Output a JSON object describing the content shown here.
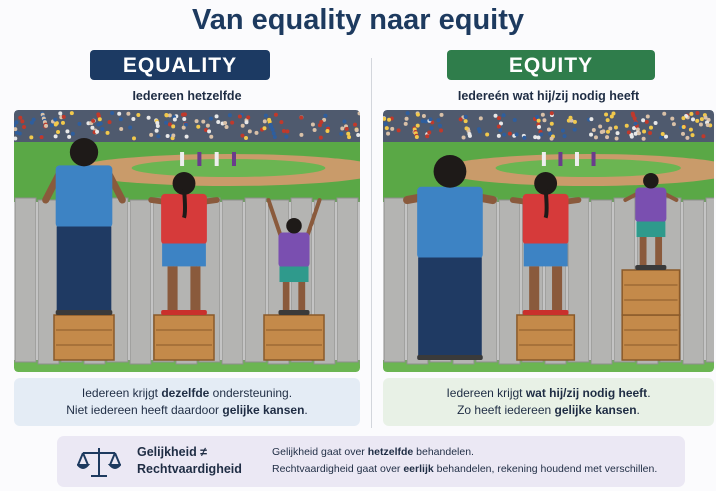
{
  "title": "Van equality naar equity",
  "panels": [
    {
      "badge": "EQUALITY",
      "badge_color": "#1c3a63",
      "subtitle": "Iedereen hetzelfde",
      "caption_color": "#e4ecf5",
      "caption": [
        [
          {
            "text": "Iedereen krijgt "
          },
          {
            "text": "dezelfde",
            "bold": true
          },
          {
            "text": " ondersteuning."
          }
        ],
        [
          {
            "text": "Niet iedereen heeft daardoor "
          },
          {
            "text": "gelijke kansen",
            "bold": true
          },
          {
            "text": "."
          }
        ]
      ]
    },
    {
      "badge": "EQUITY",
      "badge_color": "#2f7d4b",
      "subtitle": "Iedereén wat hij/zij nodig heeft",
      "caption_color": "#e8f1e6",
      "caption": [
        [
          {
            "text": "Iedereen krijgt "
          },
          {
            "text": "wat hij/zij nodig heeft",
            "bold": true
          },
          {
            "text": "."
          }
        ],
        [
          {
            "text": "Zo heeft iedereen "
          },
          {
            "text": "gelijke kansen",
            "bold": true
          },
          {
            "text": "."
          }
        ]
      ]
    }
  ],
  "footer": {
    "heading": [
      "Gelijkheid ≠",
      "Rechtvaardigheid"
    ],
    "lines": [
      [
        {
          "text": "Gelijkheid gaat over "
        },
        {
          "text": "hetzelfde",
          "bold": true
        },
        {
          "text": " behandelen."
        }
      ],
      [
        {
          "text": "Rechtvaardigheid gaat over "
        },
        {
          "text": "eerlijk",
          "bold": true
        },
        {
          "text": " behandelen, rekening houdend met verschillen."
        }
      ]
    ]
  }
}
